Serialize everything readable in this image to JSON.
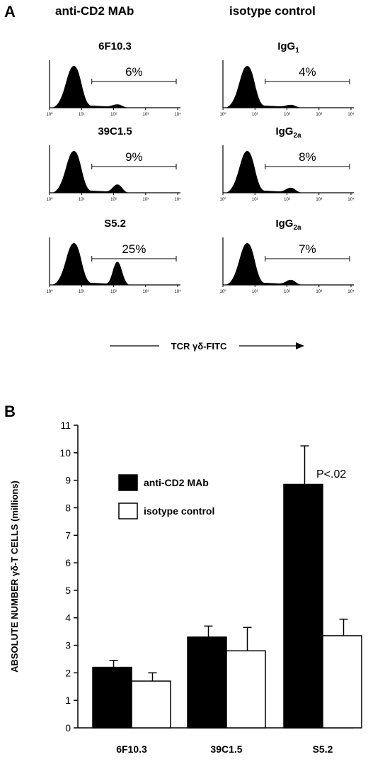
{
  "panel_a": {
    "letter": "A",
    "col_headers": [
      "anti-CD2 MAb",
      "isotype control"
    ],
    "xaxis_label": "TCR γδ-FITC",
    "tick_labels": [
      "10⁰",
      "10¹",
      "10²",
      "10³",
      "10⁴"
    ],
    "histograms": [
      {
        "title": "6F10.3",
        "subscript": "",
        "percent": "6%",
        "second_peak": 0.08
      },
      {
        "title": "IgG",
        "subscript": "1",
        "percent": "4%",
        "second_peak": 0.07
      },
      {
        "title": "39C1.5",
        "subscript": "",
        "percent": "9%",
        "second_peak": 0.2
      },
      {
        "title": "IgG",
        "subscript": "2a",
        "percent": "8%",
        "second_peak": 0.12
      },
      {
        "title": "S5.2",
        "subscript": "",
        "percent": "25%",
        "second_peak": 0.55
      },
      {
        "title": "IgG",
        "subscript": "2a",
        "percent": "7%",
        "second_peak": 0.12
      }
    ]
  },
  "chart_data": {
    "type": "bar",
    "panel_letter": "B",
    "categories": [
      "6F10.3",
      "39C1.5",
      "S5.2"
    ],
    "series": [
      {
        "name": "anti-CD2 MAb",
        "values": [
          2.2,
          3.3,
          8.85
        ],
        "errors": [
          0.25,
          0.4,
          1.4
        ],
        "color": "#000000"
      },
      {
        "name": "isotype control",
        "values": [
          1.7,
          2.8,
          3.35
        ],
        "errors": [
          0.3,
          0.85,
          0.6
        ],
        "color": "#ffffff"
      }
    ],
    "ylabel": "ABSOLUTE NUMBER γδ-T CELLS (millions)",
    "ylim": [
      0,
      11
    ],
    "yticks": [
      0,
      1,
      2,
      3,
      4,
      5,
      6,
      7,
      8,
      9,
      10,
      11
    ],
    "annotation": "P<.02",
    "legend_placement": "top-left"
  }
}
